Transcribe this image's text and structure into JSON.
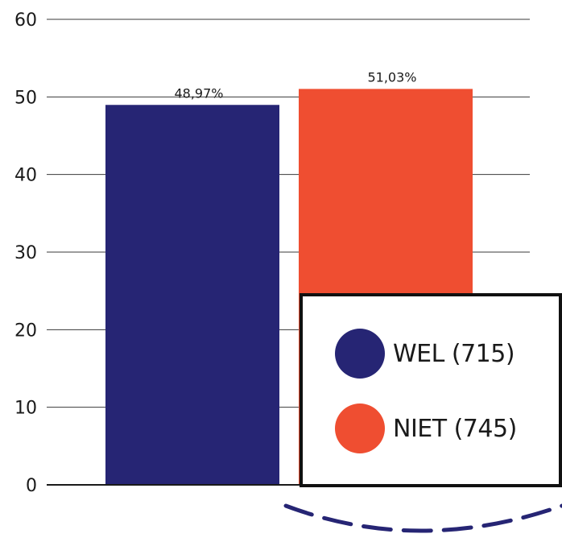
{
  "chart_data": {
    "type": "bar",
    "categories": [
      "WEL (715)",
      "NIET (745)"
    ],
    "values": [
      48.97,
      51.03
    ],
    "data_labels": [
      "48,97%",
      "51,03%"
    ],
    "colors": [
      "#262574",
      "#ef4e31"
    ],
    "y_ticks": [
      "0",
      "10",
      "20",
      "30",
      "40",
      "50",
      "60"
    ],
    "ylim": [
      0,
      60
    ],
    "grid": true,
    "legend": {
      "placement": "bottom-right",
      "items": [
        {
          "label": "WEL (715)",
          "color": "#262574"
        },
        {
          "label": "NIET (745)",
          "color": "#ef4e31"
        }
      ]
    },
    "title": "",
    "xlabel": "",
    "ylabel": ""
  },
  "decoration": {
    "dashed_arc_color": "#262574"
  }
}
